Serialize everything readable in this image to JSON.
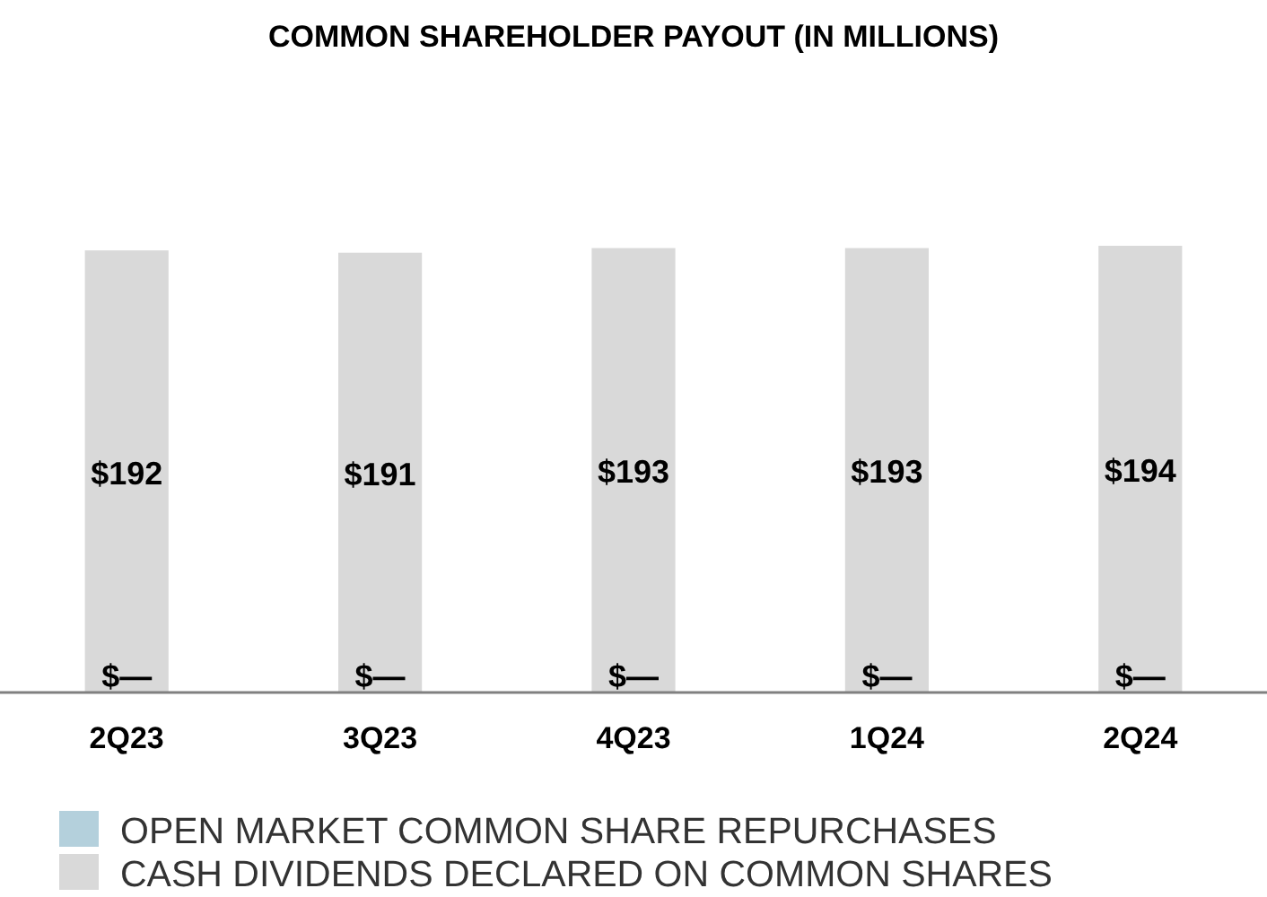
{
  "chart_data": {
    "type": "bar",
    "title": "COMMON SHAREHOLDER PAYOUT (IN MILLIONS)",
    "legend": "bottom left",
    "categories": [
      "2Q23",
      "3Q23",
      "4Q23",
      "1Q24",
      "2Q24"
    ],
    "series": [
      {
        "name": "OPEN MARKET COMMON SHARE REPURCHASES",
        "color": "#b4d0dc",
        "values": [
          0,
          0,
          0,
          0,
          0
        ],
        "value_labels": [
          "$—",
          "$—",
          "$—",
          "$—",
          "$—"
        ]
      },
      {
        "name": "CASH DIVIDENDS DECLARED ON COMMON SHARES",
        "color": "#d9d9d9",
        "values": [
          192,
          191,
          193,
          193,
          194
        ],
        "value_labels": [
          "$192",
          "$191",
          "$193",
          "$193",
          "$194"
        ]
      }
    ]
  }
}
